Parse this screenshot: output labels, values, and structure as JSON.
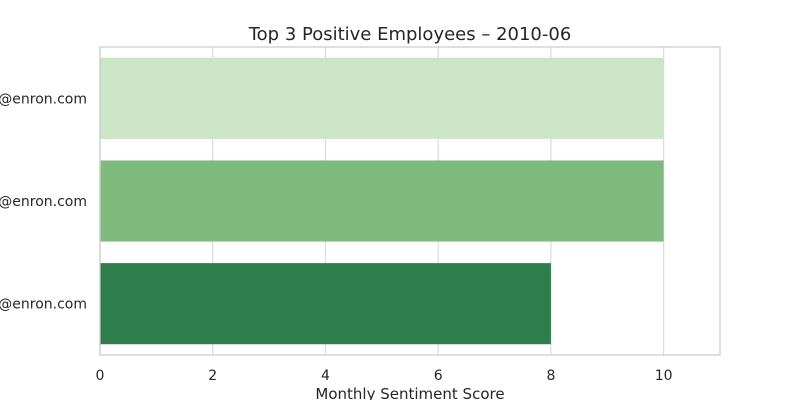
{
  "chart_data": {
    "type": "bar",
    "orientation": "horizontal",
    "title": "Top 3 Positive Employees – 2010-06",
    "xlabel": "Monthly Sentiment Score",
    "ylabel": "",
    "categories": [
      "@enron.com",
      "@enron.com",
      "@enron.com"
    ],
    "values": [
      10,
      10,
      8
    ],
    "colors": [
      "#cde5c7",
      "#7fbb7f",
      "#2f7d4a"
    ],
    "xlim": [
      0,
      11
    ],
    "xticks": [
      0,
      2,
      4,
      6,
      8,
      10
    ],
    "grid": true,
    "legend": "none"
  }
}
